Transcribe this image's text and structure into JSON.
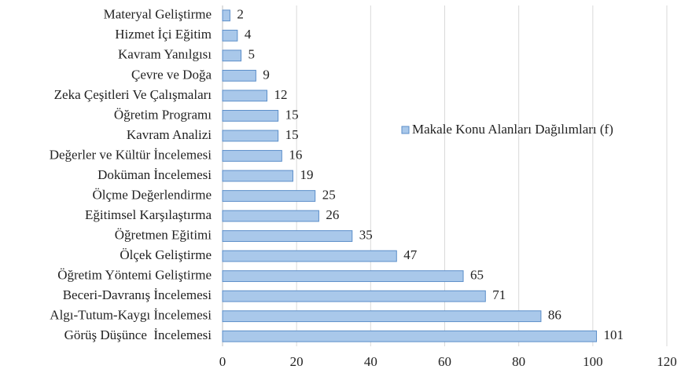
{
  "chart_data": {
    "type": "bar",
    "orientation": "horizontal",
    "categories": [
      "Materyal Geliştirme",
      "Hizmet İçi Eğitim",
      "Kavram Yanılgısı",
      "Çevre ve Doğa",
      "Zeka Çeşitleri Ve Çalışmaları",
      "Öğretim Programı",
      "Kavram Analizi",
      "Değerler ve Kültür İncelemesi",
      "Doküman İncelemesi",
      "Ölçme Değerlendirme",
      "Eğitimsel Karşılaştırma",
      "Öğretmen Eğitimi",
      "Ölçek Geliştirme",
      "Öğretim Yöntemi Geliştirme",
      "Beceri-Davranış İncelemesi",
      "Algı-Tutum-Kaygı İncelemesi",
      "Görüş Düşünce  İncelemesi"
    ],
    "series": [
      {
        "name": "Makale Konu Alanları Dağılımları (f)",
        "color": "#a9c8ea",
        "edge": "#5b8ec9",
        "values": [
          2,
          4,
          5,
          9,
          12,
          15,
          15,
          16,
          19,
          25,
          26,
          35,
          47,
          65,
          71,
          86,
          101
        ]
      }
    ],
    "xlim": [
      0,
      120
    ],
    "xticks": [
      0,
      20,
      40,
      60,
      80,
      100,
      120
    ],
    "grid": true,
    "legend": "right"
  }
}
